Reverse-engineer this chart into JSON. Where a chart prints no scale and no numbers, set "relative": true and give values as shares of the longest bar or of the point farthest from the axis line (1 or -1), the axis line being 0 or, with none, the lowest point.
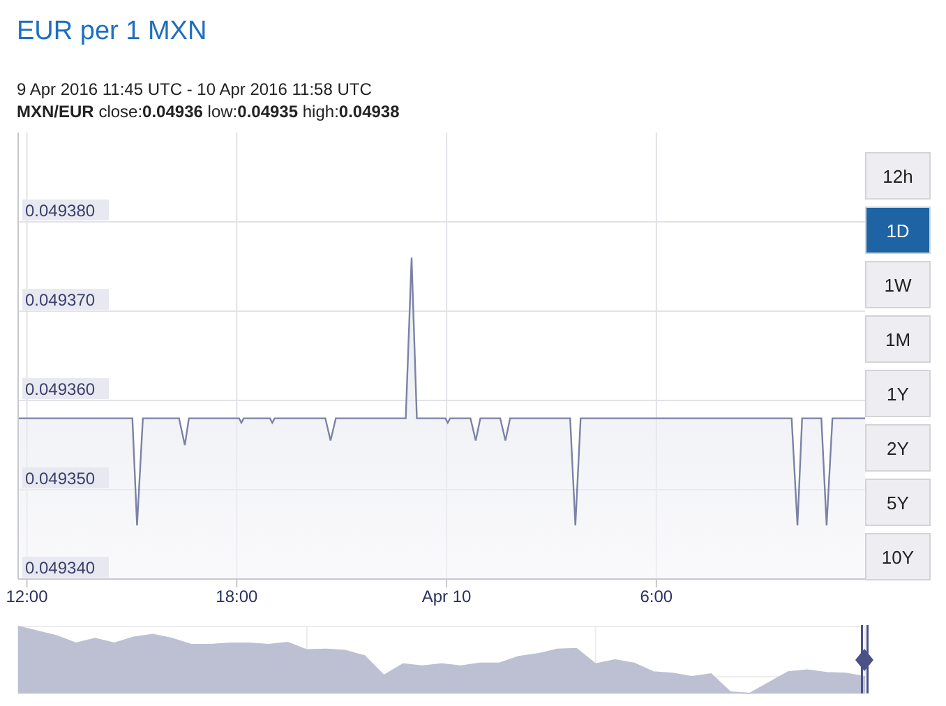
{
  "chart_data": [
    {
      "type": "area",
      "title": "EUR per 1 MXN",
      "subtitle": "9 Apr 2016 11:45 UTC - 10 Apr 2016 11:58 UTC",
      "annotations": [
        "MXN/EUR close:0.04936 low:0.04935 high:0.04938",
        "12h",
        "1D",
        "1W",
        "1M",
        "1Y",
        "2Y",
        "5Y",
        "10Y"
      ],
      "x": [
        "2016-04-09T11:45",
        "2016-04-09T15:01",
        "2016-04-09T15:09",
        "2016-04-09T15:19",
        "2016-04-09T16:21",
        "2016-04-09T16:31",
        "2016-04-09T16:38",
        "2016-04-09T18:04",
        "2016-04-09T18:08",
        "2016-04-09T18:12",
        "2016-04-09T18:57",
        "2016-04-09T19:01",
        "2016-04-09T19:05",
        "2016-04-09T20:32",
        "2016-04-09T20:41",
        "2016-04-09T20:50",
        "2016-04-09T22:50",
        "2016-04-09T23:00",
        "2016-04-09T23:09",
        "2016-04-09T23:58",
        "2016-04-10T00:02",
        "2016-04-10T00:06",
        "2016-04-10T00:41",
        "2016-04-10T00:50",
        "2016-04-10T00:58",
        "2016-04-10T01:32",
        "2016-04-10T01:41",
        "2016-04-10T01:49",
        "2016-04-10T03:32",
        "2016-04-10T03:41",
        "2016-04-10T03:50",
        "2016-04-10T09:52",
        "2016-04-10T10:02",
        "2016-04-10T10:10",
        "2016-04-10T10:43",
        "2016-04-10T10:52",
        "2016-04-10T11:02",
        "2016-04-10T11:58"
      ],
      "series": [
        {
          "color": "#7b82a6",
          "values": [
            0.049358,
            0.049358,
            0.049346,
            0.049358,
            0.049358,
            0.049355,
            0.049358,
            0.049358,
            0.0493575,
            0.049358,
            0.049358,
            0.0493575,
            0.049358,
            0.049358,
            0.0493555,
            0.049358,
            0.049358,
            0.049376,
            0.049358,
            0.049358,
            0.0493575,
            0.049358,
            0.049358,
            0.0493555,
            0.049358,
            0.049358,
            0.0493555,
            0.049358,
            0.049358,
            0.049346,
            0.049358,
            0.049358,
            0.049346,
            0.049358,
            0.049358,
            0.049346,
            0.049358,
            0.049358
          ]
        }
      ],
      "xlim": [
        "2016-04-09T11:45",
        "2016-04-10T11:58"
      ],
      "xticks": [
        {
          "value": "2016-04-09T12:00",
          "label": "12:00"
        },
        {
          "value": "2016-04-09T18:00",
          "label": "18:00"
        },
        {
          "value": "2016-04-10T00:00",
          "label": "Apr 10"
        },
        {
          "value": "2016-04-10T06:00",
          "label": "6:00"
        }
      ],
      "ylim": [
        0.04934,
        0.04939
      ],
      "yticks": [
        {
          "value": 0.04934,
          "label": "0.049340"
        },
        {
          "value": 0.04935,
          "label": "0.049350"
        },
        {
          "value": 0.04936,
          "label": "0.049360"
        },
        {
          "value": 0.04937,
          "label": "0.049370"
        },
        {
          "value": 0.04938,
          "label": "0.049380"
        }
      ],
      "grid": true
    },
    {
      "type": "area",
      "relative": true,
      "grid": true,
      "categories": [
        null,
        null,
        null,
        null,
        null,
        null,
        null,
        null,
        null,
        null,
        null,
        null,
        null,
        null,
        null,
        null,
        null,
        null,
        null,
        null,
        null,
        null,
        null,
        null,
        null,
        null,
        null,
        null,
        null,
        null,
        null,
        null,
        null,
        null,
        null,
        null,
        null,
        null,
        null,
        null,
        null,
        null,
        null,
        null,
        null
      ],
      "series": [
        {
          "color": "#bcc0d2",
          "values": [
            1,
            0.93,
            0.86,
            0.75,
            0.82,
            0.75,
            0.84,
            0.88,
            0.82,
            0.73,
            0.73,
            0.75,
            0.75,
            0.73,
            0.76,
            0.65,
            0.66,
            0.64,
            0.56,
            0.27,
            0.44,
            0.41,
            0.44,
            0.41,
            0.45,
            0.45,
            0.55,
            0.59,
            0.66,
            0.67,
            0.44,
            0.5,
            0.45,
            0.32,
            0.3,
            0.25,
            0.29,
            0.02,
            0,
            0.16,
            0.32,
            0.35,
            0.31,
            0.3,
            0.25
          ]
        }
      ]
    }
  ]
}
